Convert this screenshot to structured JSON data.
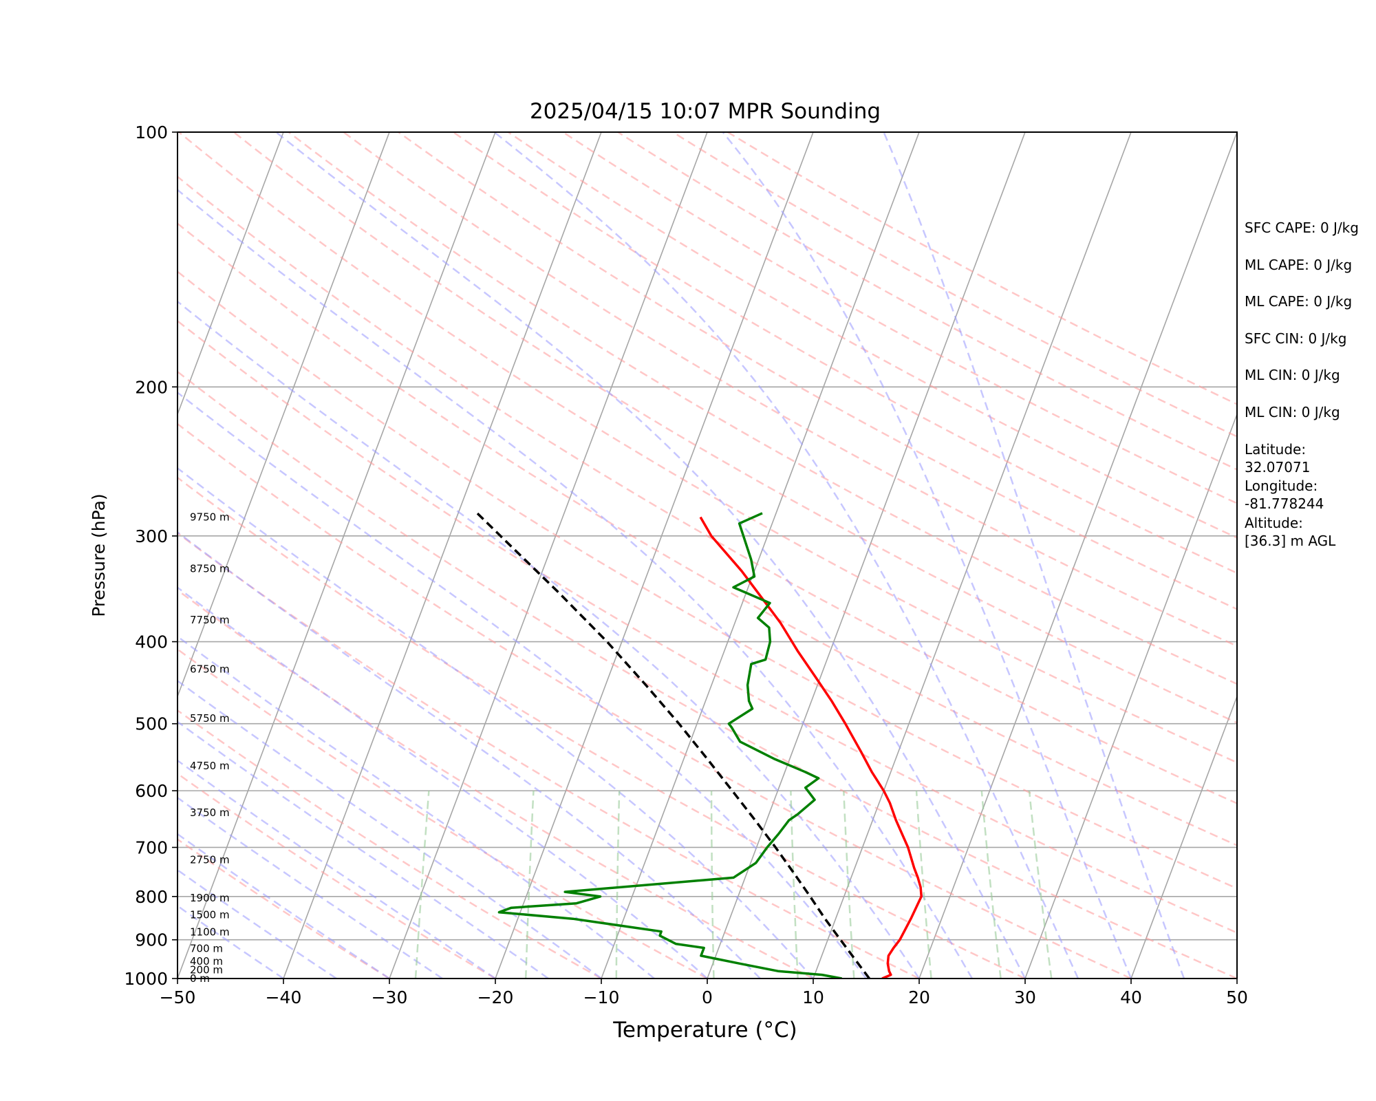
{
  "chart_data": {
    "type": "line",
    "chart_kind": "skew-T log-P sounding diagram",
    "title": "2025/04/15 10:07 MPR Sounding",
    "xlabel": "Temperature (°C)",
    "ylabel": "Pressure (hPa)",
    "xlim": [
      -50,
      50
    ],
    "ylim": [
      1000,
      100
    ],
    "y_scale": "log",
    "x_ticks": [
      "−50",
      "−40",
      "−30",
      "−20",
      "−10",
      "0",
      "10",
      "20",
      "30",
      "40",
      "50"
    ],
    "y_ticks": [
      "100",
      "200",
      "300",
      "400",
      "500",
      "600",
      "700",
      "800",
      "900",
      "1000"
    ],
    "colors": {
      "temperature": "#ff0000",
      "dewpoint": "#008000",
      "parcel": "#000000",
      "isotherms": "#a6a6a6",
      "dry_adiabats": "#ff9999",
      "moist_adiabats": "#9999ff",
      "mixing_ratio": "#99cc99"
    },
    "series": [
      {
        "id": "temperature",
        "points": [
          [
            1000,
            16.5
          ],
          [
            990,
            17.2
          ],
          [
            980,
            16.9
          ],
          [
            960,
            16.5
          ],
          [
            940,
            16.3
          ],
          [
            920,
            16.5
          ],
          [
            900,
            16.8
          ],
          [
            850,
            17.1
          ],
          [
            800,
            17.3
          ],
          [
            780,
            16.9
          ],
          [
            760,
            16.3
          ],
          [
            740,
            15.6
          ],
          [
            700,
            14.3
          ],
          [
            650,
            12.2
          ],
          [
            620,
            11.0
          ],
          [
            600,
            10.0
          ],
          [
            570,
            8.2
          ],
          [
            540,
            6.5
          ],
          [
            500,
            4.0
          ],
          [
            470,
            1.9
          ],
          [
            440,
            -0.5
          ],
          [
            410,
            -3.1
          ],
          [
            380,
            -5.7
          ],
          [
            360,
            -7.8
          ],
          [
            330,
            -11.2
          ],
          [
            300,
            -15.3
          ],
          [
            285,
            -17.0
          ]
        ]
      },
      {
        "id": "dewpoint",
        "points": [
          [
            1000,
            12.7
          ],
          [
            990,
            10.7
          ],
          [
            980,
            6.4
          ],
          [
            960,
            2.5
          ],
          [
            940,
            -1.4
          ],
          [
            920,
            -1.4
          ],
          [
            910,
            -4.2
          ],
          [
            890,
            -6.0
          ],
          [
            880,
            -6.0
          ],
          [
            850,
            -14.8
          ],
          [
            835,
            -22.0
          ],
          [
            825,
            -21.0
          ],
          [
            815,
            -15.0
          ],
          [
            800,
            -13.0
          ],
          [
            790,
            -16.5
          ],
          [
            760,
            -1.1
          ],
          [
            730,
            0.5
          ],
          [
            700,
            1.0
          ],
          [
            675,
            1.6
          ],
          [
            650,
            2.1
          ],
          [
            640,
            2.7
          ],
          [
            615,
            3.8
          ],
          [
            595,
            2.5
          ],
          [
            580,
            3.4
          ],
          [
            570,
            1.9
          ],
          [
            550,
            -1.5
          ],
          [
            525,
            -5.3
          ],
          [
            505,
            -6.6
          ],
          [
            500,
            -7.0
          ],
          [
            480,
            -5.3
          ],
          [
            470,
            -5.9
          ],
          [
            450,
            -6.6
          ],
          [
            425,
            -7.0
          ],
          [
            420,
            -5.8
          ],
          [
            400,
            -6.0
          ],
          [
            385,
            -6.6
          ],
          [
            375,
            -8.0
          ],
          [
            360,
            -7.4
          ],
          [
            345,
            -11.4
          ],
          [
            335,
            -9.8
          ],
          [
            320,
            -10.7
          ],
          [
            290,
            -13.1
          ],
          [
            282,
            -11.3
          ]
        ]
      },
      {
        "id": "parcel",
        "points": [
          [
            1000,
            15.3
          ],
          [
            950,
            13.3
          ],
          [
            900,
            11.2
          ],
          [
            850,
            9.0
          ],
          [
            800,
            6.8
          ],
          [
            750,
            4.4
          ],
          [
            700,
            1.8
          ],
          [
            650,
            -1.1
          ],
          [
            600,
            -4.3
          ],
          [
            550,
            -7.8
          ],
          [
            500,
            -11.7
          ],
          [
            450,
            -16.2
          ],
          [
            400,
            -21.4
          ],
          [
            350,
            -27.7
          ],
          [
            300,
            -35.2
          ],
          [
            282,
            -38.2
          ]
        ]
      }
    ],
    "height_labels": [
      {
        "p": 1000,
        "label": "0 m"
      },
      {
        "p": 977,
        "label": "200 m"
      },
      {
        "p": 954,
        "label": "400 m"
      },
      {
        "p": 922,
        "label": "700 m"
      },
      {
        "p": 881,
        "label": "1100 m"
      },
      {
        "p": 841,
        "label": "1500 m"
      },
      {
        "p": 803,
        "label": "1900 m"
      },
      {
        "p": 724,
        "label": "2750 m"
      },
      {
        "p": 637,
        "label": "3750 m"
      },
      {
        "p": 561,
        "label": "4750 m"
      },
      {
        "p": 493,
        "label": "5750 m"
      },
      {
        "p": 431,
        "label": "6750 m"
      },
      {
        "p": 377,
        "label": "7750 m"
      },
      {
        "p": 328,
        "label": "8750 m"
      },
      {
        "p": 285,
        "label": "9750 m"
      }
    ],
    "grid": true
  },
  "side_panel": [
    "SFC CAPE: 0 J/kg",
    "ML CAPE: 0 J/kg",
    "ML CAPE: 0 J/kg",
    "SFC CIN: 0 J/kg",
    "ML CIN: 0 J/kg",
    "ML CIN: 0 J/kg",
    "Latitude:\n32.07071",
    "Longitude:\n-81.778244",
    "Altitude:\n[36.3] m AGL"
  ]
}
